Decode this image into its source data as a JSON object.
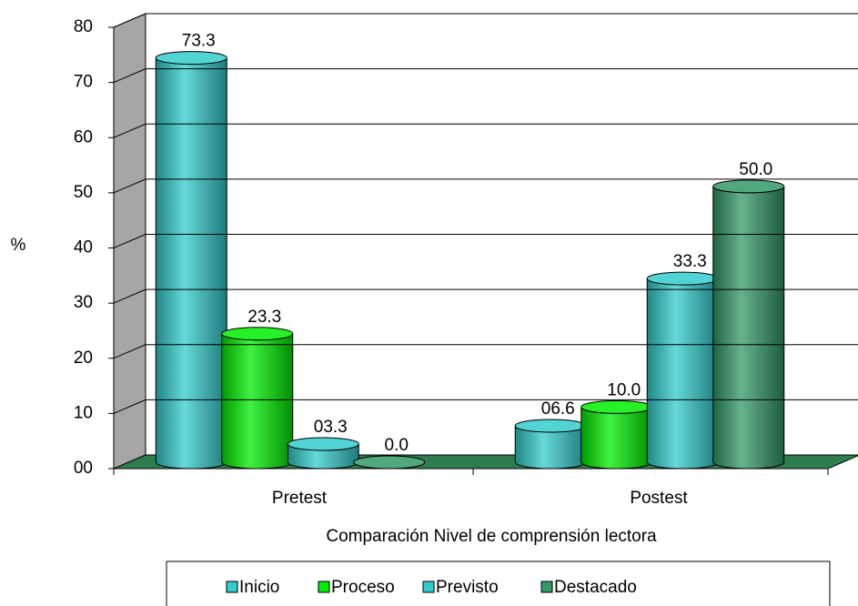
{
  "chart_data": {
    "type": "bar3d",
    "x_label": "Comparación Nivel de comprensión lectora",
    "y_label": "%",
    "categories": [
      "Pretest",
      "Postest"
    ],
    "series": [
      {
        "name": "Inicio",
        "color": "#33cccc",
        "values": [
          73.3,
          6.6
        ],
        "value_labels": [
          "73.3",
          "06.6"
        ]
      },
      {
        "name": "Proceso",
        "color": "#00ee00",
        "values": [
          23.3,
          10.0
        ],
        "value_labels": [
          "23.3",
          "10.0"
        ]
      },
      {
        "name": "Previsto",
        "color": "#33cccc",
        "values": [
          3.3,
          33.3
        ],
        "value_labels": [
          "03.3",
          "33.3"
        ]
      },
      {
        "name": "Destacado",
        "color": "#339966",
        "values": [
          0.0,
          50.0
        ],
        "value_labels": [
          "0.0",
          "50.0"
        ]
      }
    ],
    "ylim": [
      0,
      80
    ],
    "yticks": [
      {
        "value": 0,
        "label": "00"
      },
      10,
      20,
      30,
      40,
      50,
      60,
      70,
      80
    ],
    "grid": true,
    "legend": "bottom"
  }
}
